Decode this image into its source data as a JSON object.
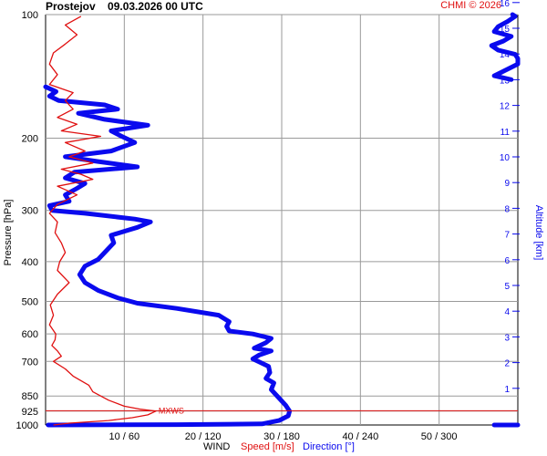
{
  "header": {
    "station": "Prostejov",
    "datetime": "09.03.2026 00 UTC",
    "copyright": "CHMI © 2026"
  },
  "footer": {
    "wind": "WIND",
    "speed": "Speed [m/s]",
    "direction": "Direction [°]"
  },
  "colors": {
    "speed": "#e01010",
    "direction": "#0a0aee",
    "grid": "#9a9a9a",
    "axis": "#000000"
  },
  "chart_data": {
    "type": "line",
    "ylabel": "Pressure [hPa]",
    "y2label": "Altitude [km]",
    "xlabel": "WIND",
    "pressure_ticks": [
      100,
      200,
      300,
      400,
      500,
      600,
      700,
      850,
      925,
      1000
    ],
    "altitude_ticks_km": [
      1,
      2,
      3,
      4,
      5,
      6,
      7,
      8,
      9,
      10,
      11,
      12,
      13,
      14,
      15,
      16
    ],
    "x_tick_labels": [
      "10 / 60",
      "20 / 120",
      "30 / 180",
      "40 / 240",
      "50 / 300"
    ],
    "speed_range_ms": [
      0,
      60
    ],
    "direction_range_deg": [
      0,
      360
    ],
    "annotation": {
      "text": "MXWS",
      "pressure_hpa": 923,
      "speed_ms": 14
    },
    "series": [
      {
        "name": "Speed [m/s]",
        "unit": "m/s",
        "points": [
          {
            "p": 1000,
            "v": 1
          },
          {
            "p": 990,
            "v": 3
          },
          {
            "p": 975,
            "v": 8
          },
          {
            "p": 960,
            "v": 11
          },
          {
            "p": 945,
            "v": 13
          },
          {
            "p": 925,
            "v": 14
          },
          {
            "p": 915,
            "v": 12
          },
          {
            "p": 900,
            "v": 10
          },
          {
            "p": 870,
            "v": 8
          },
          {
            "p": 830,
            "v": 6
          },
          {
            "p": 800,
            "v": 5.5
          },
          {
            "p": 760,
            "v": 3.5
          },
          {
            "p": 730,
            "v": 2.5
          },
          {
            "p": 700,
            "v": 1
          },
          {
            "p": 680,
            "v": 2
          },
          {
            "p": 660,
            "v": 1.5
          },
          {
            "p": 640,
            "v": 0.8
          },
          {
            "p": 620,
            "v": 1.2
          },
          {
            "p": 600,
            "v": 1.3
          },
          {
            "p": 570,
            "v": 0.5
          },
          {
            "p": 540,
            "v": 1
          },
          {
            "p": 510,
            "v": 0.6
          },
          {
            "p": 480,
            "v": 1.5
          },
          {
            "p": 450,
            "v": 3
          },
          {
            "p": 420,
            "v": 1.5
          },
          {
            "p": 400,
            "v": 1.8
          },
          {
            "p": 380,
            "v": 2.5
          },
          {
            "p": 360,
            "v": 2
          },
          {
            "p": 340,
            "v": 1.2
          },
          {
            "p": 320,
            "v": 1.5
          },
          {
            "p": 305,
            "v": 0.5
          },
          {
            "p": 290,
            "v": 1.5
          },
          {
            "p": 275,
            "v": 4
          },
          {
            "p": 262,
            "v": 1.5
          },
          {
            "p": 252,
            "v": 6
          },
          {
            "p": 245,
            "v": 4.5
          },
          {
            "p": 238,
            "v": 2
          },
          {
            "p": 230,
            "v": 6
          },
          {
            "p": 222,
            "v": 3
          },
          {
            "p": 215,
            "v": 5
          },
          {
            "p": 205,
            "v": 2.5
          },
          {
            "p": 198,
            "v": 7
          },
          {
            "p": 192,
            "v": 2
          },
          {
            "p": 185,
            "v": 4
          },
          {
            "p": 178,
            "v": 1.5
          },
          {
            "p": 170,
            "v": 3.5
          },
          {
            "p": 162,
            "v": 2.5
          },
          {
            "p": 155,
            "v": 3.5
          },
          {
            "p": 148,
            "v": 0.5
          },
          {
            "p": 140,
            "v": 1.5
          },
          {
            "p": 132,
            "v": 0.5
          },
          {
            "p": 124,
            "v": 1
          },
          {
            "p": 118,
            "v": 2.5
          },
          {
            "p": 112,
            "v": 4
          },
          {
            "p": 106,
            "v": 2.5
          },
          {
            "p": 101,
            "v": 4.5
          }
        ]
      },
      {
        "name": "Direction [°]",
        "unit": "deg",
        "points": [
          {
            "p": 1000,
            "d": 2
          },
          {
            "p": 998,
            "d": 100
          },
          {
            "p": 994,
            "d": 165
          },
          {
            "p": 975,
            "d": 178
          },
          {
            "p": 950,
            "d": 185
          },
          {
            "p": 925,
            "d": 186
          },
          {
            "p": 895,
            "d": 183
          },
          {
            "p": 860,
            "d": 178
          },
          {
            "p": 820,
            "d": 172
          },
          {
            "p": 790,
            "d": 174
          },
          {
            "p": 770,
            "d": 168
          },
          {
            "p": 745,
            "d": 171
          },
          {
            "p": 720,
            "d": 170
          },
          {
            "p": 700,
            "d": 162
          },
          {
            "p": 690,
            "d": 158
          },
          {
            "p": 675,
            "d": 163
          },
          {
            "p": 660,
            "d": 172
          },
          {
            "p": 650,
            "d": 159
          },
          {
            "p": 630,
            "d": 168
          },
          {
            "p": 615,
            "d": 172
          },
          {
            "p": 600,
            "d": 158
          },
          {
            "p": 590,
            "d": 140
          },
          {
            "p": 575,
            "d": 138
          },
          {
            "p": 560,
            "d": 140
          },
          {
            "p": 540,
            "d": 132
          },
          {
            "p": 520,
            "d": 100
          },
          {
            "p": 505,
            "d": 70
          },
          {
            "p": 490,
            "d": 55
          },
          {
            "p": 470,
            "d": 40
          },
          {
            "p": 450,
            "d": 30
          },
          {
            "p": 430,
            "d": 26
          },
          {
            "p": 410,
            "d": 30
          },
          {
            "p": 395,
            "d": 40
          },
          {
            "p": 380,
            "d": 45
          },
          {
            "p": 360,
            "d": 52
          },
          {
            "p": 345,
            "d": 50
          },
          {
            "p": 330,
            "d": 70
          },
          {
            "p": 320,
            "d": 80
          },
          {
            "p": 315,
            "d": 68
          },
          {
            "p": 305,
            "d": 30
          },
          {
            "p": 300,
            "d": 5
          },
          {
            "p": 292,
            "d": 3
          },
          {
            "p": 285,
            "d": 18
          },
          {
            "p": 275,
            "d": 15
          },
          {
            "p": 265,
            "d": 24
          },
          {
            "p": 258,
            "d": 30
          },
          {
            "p": 250,
            "d": 15
          },
          {
            "p": 242,
            "d": 22
          },
          {
            "p": 235,
            "d": 70
          },
          {
            "p": 228,
            "d": 40
          },
          {
            "p": 222,
            "d": 15
          },
          {
            "p": 215,
            "d": 50
          },
          {
            "p": 205,
            "d": 68
          },
          {
            "p": 198,
            "d": 58
          },
          {
            "p": 192,
            "d": 50
          },
          {
            "p": 186,
            "d": 78
          },
          {
            "p": 180,
            "d": 45
          },
          {
            "p": 174,
            "d": 25
          },
          {
            "p": 170,
            "d": 55
          },
          {
            "p": 166,
            "d": 45
          },
          {
            "p": 162,
            "d": 10
          },
          {
            "p": 158,
            "d": 3
          },
          {
            "p": 154,
            "d": 8
          },
          {
            "p": 150,
            "d": 0
          }
        ]
      },
      {
        "name": "Direction [°] (upper)",
        "unit": "deg",
        "points": [
          {
            "p": 144,
            "d": 355
          },
          {
            "p": 141,
            "d": 342
          },
          {
            "p": 138,
            "d": 348
          },
          {
            "p": 132,
            "d": 360
          },
          {
            "p": 128,
            "d": 360
          },
          {
            "p": 125,
            "d": 358
          },
          {
            "p": 122,
            "d": 345
          },
          {
            "p": 119,
            "d": 340
          },
          {
            "p": 116,
            "d": 349
          },
          {
            "p": 113,
            "d": 355
          },
          {
            "p": 110,
            "d": 342
          },
          {
            "p": 107,
            "d": 345
          },
          {
            "p": 104,
            "d": 352
          },
          {
            "p": 101,
            "d": 358
          },
          {
            "p": 100,
            "d": 356
          }
        ]
      },
      {
        "name": "Direction [°] (surface)",
        "unit": "deg",
        "points": [
          {
            "p": 1000,
            "d": 342
          },
          {
            "p": 1000,
            "d": 360
          }
        ]
      }
    ]
  }
}
